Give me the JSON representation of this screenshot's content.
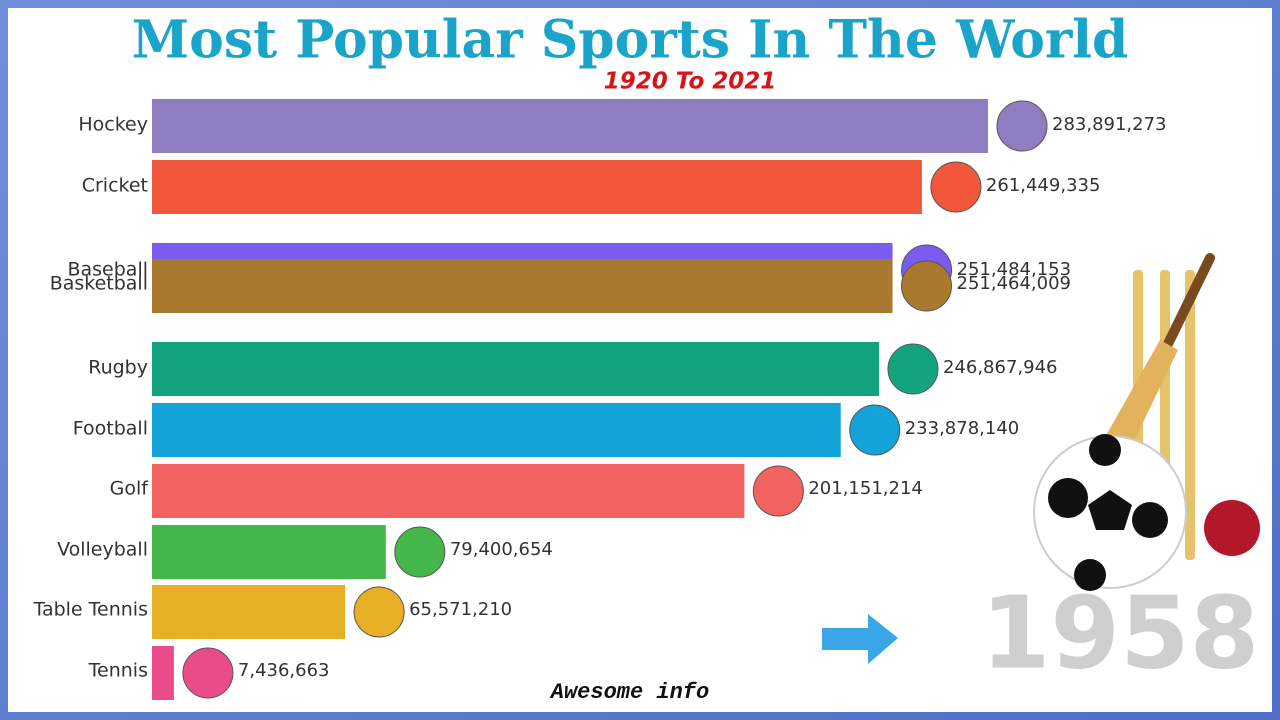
{
  "chart_data": {
    "type": "bar",
    "orientation": "horizontal",
    "title": "Most Popular Sports In The World",
    "subtitle": "1920 To 2021",
    "year": 1958,
    "footer": "Awesome info",
    "categories": [
      "Hockey",
      "Cricket",
      "Baseball",
      "Basketball",
      "Rugby",
      "Football",
      "Golf",
      "Volleyball",
      "Table Tennis",
      "Tennis"
    ],
    "values": [
      283891273,
      261449335,
      251484153,
      251464009,
      246867946,
      233878140,
      201151214,
      79400654,
      65571210,
      7436663
    ],
    "value_labels": [
      "283,891,273",
      "261,449,335",
      "251,484,153",
      "251,464,009",
      "246,867,946",
      "233,878,140",
      "201,151,214",
      "79,400,654",
      "65,571,210",
      "7,436,663"
    ],
    "colors": [
      "#8e7dc0",
      "#f1573a",
      "#7b5cf0",
      "#a9792f",
      "#14a37f",
      "#12a3d9",
      "#f2625e",
      "#45b649",
      "#e8b024",
      "#ea4b8b"
    ]
  }
}
